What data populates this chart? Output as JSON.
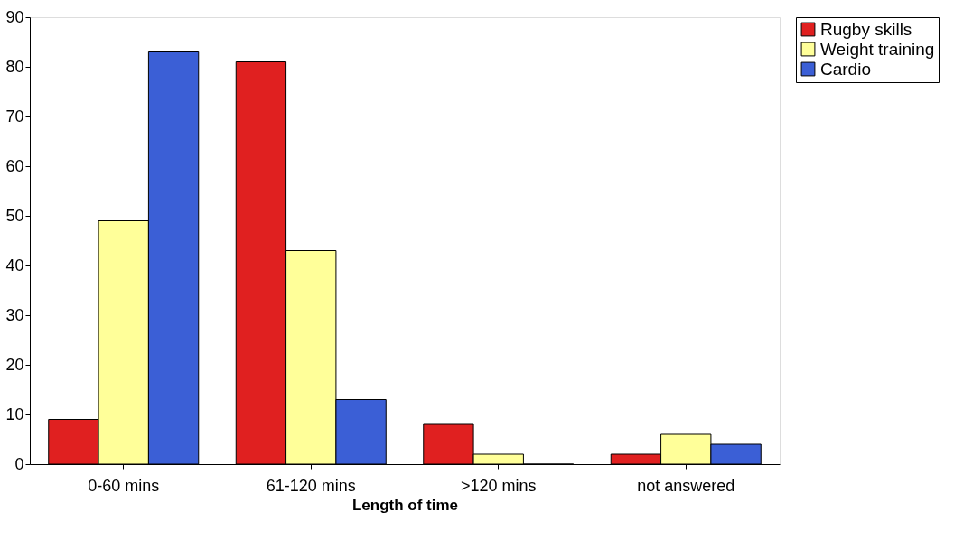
{
  "chart_data": {
    "type": "bar",
    "xlabel": "Length of time",
    "categories": [
      "0-60 mins",
      "61-120 mins",
      ">120 mins",
      "not answered"
    ],
    "series": [
      {
        "name": "Rugby skills",
        "color": "#e02020",
        "values": [
          9,
          81,
          8,
          2
        ]
      },
      {
        "name": "Weight training",
        "color": "#ffff99",
        "values": [
          49,
          43,
          2,
          6
        ]
      },
      {
        "name": "Cardio",
        "color": "#3b5fd6",
        "values": [
          83,
          13,
          0,
          4
        ]
      }
    ],
    "ylim": [
      0,
      90
    ],
    "yticks": [
      0,
      10,
      20,
      30,
      40,
      50,
      60,
      70,
      80,
      90
    ],
    "grid": false,
    "legend": "right"
  }
}
